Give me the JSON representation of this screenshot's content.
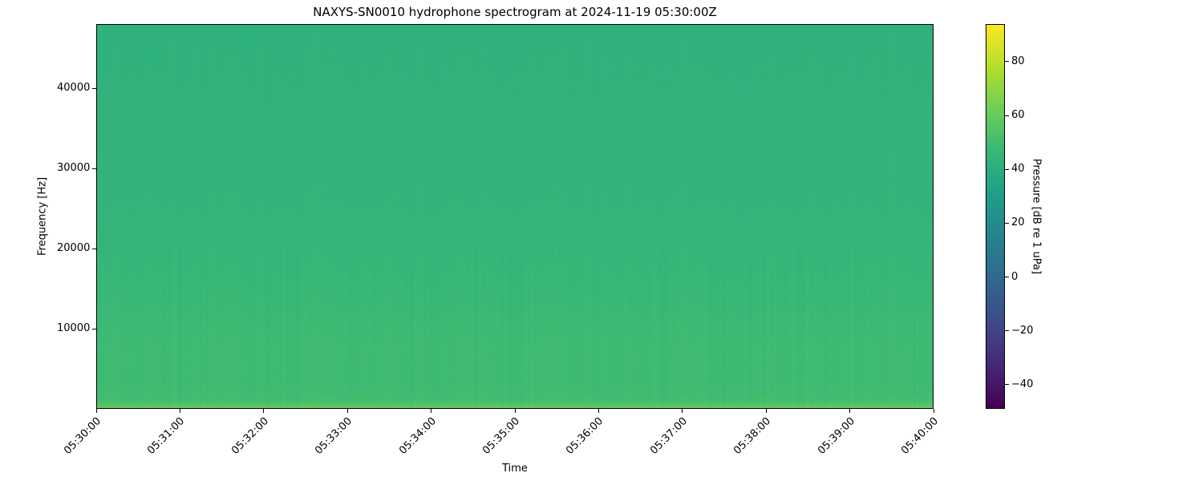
{
  "chart_data": {
    "type": "heatmap",
    "title": "NAXYS-SN0010 hydrophone spectrogram at 2024-11-19 05:30:00Z",
    "xlabel": "Time",
    "ylabel": "Frequency [Hz]",
    "colorbar_label": "Pressure [dB re 1 uPa]",
    "colormap": "viridis",
    "x_ticks": [
      "05:30:00",
      "05:31:00",
      "05:32:00",
      "05:33:00",
      "05:34:00",
      "05:35:00",
      "05:36:00",
      "05:37:00",
      "05:38:00",
      "05:39:00",
      "05:40:00"
    ],
    "xlim": [
      "05:30:00",
      "05:40:00"
    ],
    "y_ticks": [
      10000,
      20000,
      30000,
      40000
    ],
    "ylim": [
      0,
      48000
    ],
    "colorbar_ticks": [
      -40,
      -20,
      0,
      20,
      40,
      60,
      80
    ],
    "clim": [
      -49,
      94
    ],
    "grid": false,
    "approx_level_profile": {
      "frequency_hz": [
        0,
        300,
        800,
        1500,
        3000,
        8000,
        15000,
        25000,
        35000,
        48000
      ],
      "level_db": [
        62,
        58,
        52,
        50,
        49,
        49,
        47,
        45,
        44,
        43
      ]
    }
  }
}
